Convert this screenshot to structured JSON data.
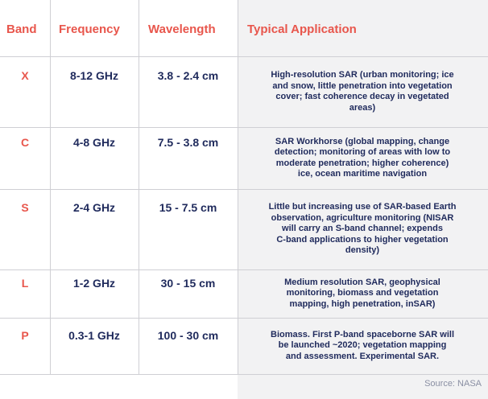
{
  "table": {
    "header": [
      "Band",
      "Frequency",
      "Wavelength",
      "Typical Application"
    ],
    "rows": [
      {
        "band": "X",
        "frequency": "8-12 GHz",
        "wavelength": "3.8 - 2.4 cm",
        "application": [
          "High-resolution SAR (urban monitoring; ice",
          "and snow, little penetration into vegetation",
          "cover; fast coherence decay in vegetated",
          "areas)"
        ]
      },
      {
        "band": "C",
        "frequency": "4-8 GHz",
        "wavelength": "7.5 - 3.8 cm",
        "application": [
          "SAR Workhorse (global mapping, change",
          "detection; monitoring of areas with low to",
          "moderate penetration; higher coherence)",
          "ice, ocean maritime navigation"
        ]
      },
      {
        "band": "S",
        "frequency": "2-4 GHz",
        "wavelength": "15 - 7.5 cm",
        "application": [
          "Little but increasing use of SAR-based Earth",
          "observation, agriculture monitoring (NISAR",
          "will carry an S-band channel; expends",
          "C-band applications to higher vegetation",
          "density)"
        ]
      },
      {
        "band": "L",
        "frequency": "1-2 GHz",
        "wavelength": "30 - 15 cm",
        "application": [
          "Medium resolution SAR, geophysical",
          "monitoring, biomass and vegetation",
          "mapping, high penetration, inSAR)"
        ]
      },
      {
        "band": "P",
        "frequency": "0.3-1 GHz",
        "wavelength": "100 - 30 cm",
        "application": [
          "Biomass. First P-band spaceborne SAR will",
          "be launched ~2020; vegetation mapping",
          "and assessment. Experimental SAR."
        ]
      }
    ]
  },
  "source": "Source: NASA"
}
